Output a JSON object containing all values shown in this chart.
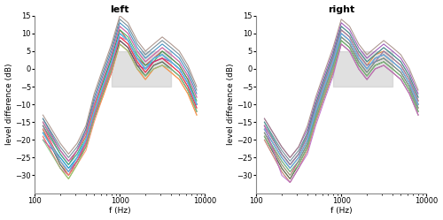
{
  "title_left": "left",
  "title_right": "right",
  "xlabel": "f (Hz)",
  "ylabel": "level difference (dB)",
  "ylim": [
    -35,
    15
  ],
  "xlim": [
    100,
    10000
  ],
  "yticks": [
    -30,
    -25,
    -20,
    -15,
    -10,
    -5,
    0,
    5,
    10,
    15
  ],
  "gray_box": {
    "xmin": 800,
    "xmax": 4000,
    "ymin": -5,
    "ymax": 5
  },
  "gray_color": "#c8c8c8",
  "gray_alpha": 0.55,
  "freqs": [
    125,
    200,
    250,
    315,
    400,
    500,
    630,
    800,
    1000,
    1250,
    1600,
    2000,
    2500,
    3150,
    4000,
    5000,
    6300,
    8000
  ],
  "line_colors": [
    "#c0392b",
    "#e67e22",
    "#d4ac0d",
    "#27ae60",
    "#1abc9c",
    "#2980b9",
    "#8e44ad",
    "#e91e63",
    "#00bcd4",
    "#ff7043",
    "#795548",
    "#607d8b",
    "#f06292",
    "#4db6ac",
    "#7986cb",
    "#ff8a65",
    "#a1887f",
    "#4fc3f7",
    "#81c784",
    "#ba68c8"
  ],
  "left_data": [
    [
      -16,
      -24,
      -27,
      -23,
      -18,
      -10,
      -4,
      3,
      11,
      8,
      3,
      1,
      3,
      5,
      3,
      1,
      -3,
      -10
    ],
    [
      -18,
      -26,
      -29,
      -25,
      -20,
      -12,
      -6,
      1,
      9,
      7,
      2,
      -1,
      2,
      3,
      1,
      -1,
      -5,
      -11
    ],
    [
      -19,
      -28,
      -31,
      -27,
      -22,
      -14,
      -8,
      -1,
      7,
      5,
      0,
      -3,
      0,
      1,
      -1,
      -3,
      -7,
      -13
    ],
    [
      -15,
      -24,
      -27,
      -24,
      -19,
      -11,
      -4,
      3,
      11,
      9,
      4,
      1,
      2,
      5,
      3,
      1,
      -3,
      -9
    ],
    [
      -17,
      -27,
      -30,
      -26,
      -21,
      -13,
      -7,
      0,
      8,
      6,
      1,
      -2,
      1,
      2,
      0,
      -2,
      -6,
      -12
    ],
    [
      -14,
      -23,
      -26,
      -23,
      -17,
      -9,
      -2,
      5,
      13,
      11,
      6,
      3,
      5,
      7,
      5,
      3,
      -1,
      -7
    ],
    [
      -20,
      -25,
      -28,
      -25,
      -21,
      -14,
      -7,
      -1,
      8,
      6,
      1,
      0,
      2,
      3,
      2,
      0,
      -4,
      -10
    ],
    [
      -16,
      -26,
      -29,
      -26,
      -21,
      -13,
      -6,
      1,
      9,
      7,
      2,
      -1,
      2,
      3,
      1,
      -1,
      -5,
      -11
    ],
    [
      -18,
      -25,
      -28,
      -25,
      -20,
      -12,
      -5,
      2,
      10,
      8,
      3,
      0,
      3,
      4,
      2,
      0,
      -4,
      -10
    ],
    [
      -15,
      -23,
      -26,
      -23,
      -19,
      -11,
      -3,
      4,
      12,
      10,
      5,
      2,
      4,
      6,
      4,
      2,
      -2,
      -8
    ],
    [
      -17,
      -27,
      -30,
      -26,
      -22,
      -14,
      -7,
      0,
      8,
      6,
      1,
      -2,
      1,
      2,
      0,
      -2,
      -6,
      -12
    ],
    [
      -14,
      -22,
      -25,
      -22,
      -17,
      -8,
      -1,
      6,
      14,
      12,
      7,
      4,
      6,
      8,
      6,
      4,
      0,
      -6
    ],
    [
      -19,
      -28,
      -30,
      -26,
      -21,
      -13,
      -6,
      1,
      9,
      8,
      3,
      0,
      3,
      4,
      2,
      0,
      -4,
      -10
    ],
    [
      -16,
      -24,
      -27,
      -24,
      -20,
      -12,
      -5,
      2,
      10,
      8,
      3,
      0,
      3,
      4,
      2,
      0,
      -4,
      -10
    ],
    [
      -18,
      -26,
      -29,
      -25,
      -20,
      -12,
      -5,
      2,
      10,
      8,
      3,
      0,
      3,
      4,
      2,
      0,
      -4,
      -10
    ],
    [
      -17,
      -26,
      -30,
      -27,
      -23,
      -15,
      -8,
      -1,
      7,
      5,
      0,
      -3,
      0,
      1,
      -1,
      -3,
      -7,
      -13
    ],
    [
      -13,
      -21,
      -24,
      -21,
      -16,
      -7,
      0,
      7,
      15,
      13,
      8,
      5,
      7,
      9,
      7,
      5,
      1,
      -5
    ],
    [
      -18,
      -26,
      -29,
      -25,
      -20,
      -12,
      -5,
      2,
      10,
      8,
      3,
      0,
      3,
      4,
      2,
      0,
      -4,
      -10
    ],
    [
      -20,
      -28,
      -31,
      -27,
      -22,
      -14,
      -7,
      0,
      7,
      5,
      0,
      -2,
      0,
      1,
      0,
      -2,
      -6,
      -12
    ],
    [
      -15,
      -23,
      -26,
      -23,
      -18,
      -10,
      -3,
      4,
      12,
      10,
      5,
      2,
      4,
      6,
      4,
      2,
      -2,
      -8
    ]
  ],
  "right_data": [
    [
      -16,
      -24,
      -27,
      -24,
      -19,
      -11,
      -4,
      3,
      10,
      8,
      3,
      0,
      3,
      4,
      2,
      0,
      -4,
      -10
    ],
    [
      -17,
      -25,
      -28,
      -25,
      -20,
      -12,
      -5,
      2,
      11,
      9,
      4,
      1,
      4,
      5,
      3,
      1,
      -3,
      -9
    ],
    [
      -18,
      -26,
      -29,
      -26,
      -21,
      -13,
      -6,
      1,
      9,
      7,
      2,
      -1,
      2,
      3,
      1,
      -1,
      -5,
      -11
    ],
    [
      -19,
      -28,
      -31,
      -27,
      -22,
      -14,
      -8,
      -1,
      8,
      6,
      1,
      -2,
      1,
      2,
      0,
      -2,
      -6,
      -12
    ],
    [
      -15,
      -24,
      -27,
      -24,
      -18,
      -10,
      -3,
      4,
      12,
      10,
      5,
      2,
      4,
      6,
      4,
      2,
      -2,
      -8
    ],
    [
      -20,
      -29,
      -32,
      -28,
      -23,
      -15,
      -8,
      -1,
      7,
      5,
      0,
      -3,
      0,
      1,
      -1,
      -3,
      -7,
      -13
    ],
    [
      -14,
      -22,
      -25,
      -22,
      -17,
      -9,
      -2,
      5,
      13,
      11,
      6,
      3,
      5,
      7,
      5,
      3,
      -1,
      -7
    ],
    [
      -18,
      -27,
      -30,
      -26,
      -21,
      -13,
      -6,
      1,
      9,
      7,
      2,
      -1,
      2,
      3,
      1,
      -1,
      -5,
      -11
    ],
    [
      -17,
      -25,
      -28,
      -25,
      -20,
      -12,
      -5,
      2,
      10,
      8,
      3,
      0,
      3,
      4,
      2,
      0,
      -4,
      -10
    ],
    [
      -16,
      -24,
      -27,
      -24,
      -19,
      -11,
      -4,
      3,
      11,
      9,
      4,
      1,
      2,
      5,
      3,
      1,
      -3,
      -9
    ],
    [
      -19,
      -28,
      -31,
      -27,
      -22,
      -14,
      -7,
      0,
      8,
      6,
      1,
      -2,
      1,
      2,
      0,
      -2,
      -6,
      -12
    ],
    [
      -15,
      -23,
      -26,
      -23,
      -18,
      -10,
      -3,
      4,
      12,
      10,
      5,
      2,
      4,
      6,
      4,
      2,
      -2,
      -8
    ],
    [
      -17,
      -25,
      -28,
      -25,
      -20,
      -12,
      -5,
      2,
      10,
      8,
      3,
      0,
      3,
      4,
      2,
      0,
      -4,
      -10
    ],
    [
      -18,
      -26,
      -29,
      -26,
      -21,
      -13,
      -6,
      1,
      9,
      7,
      2,
      -1,
      2,
      3,
      1,
      -1,
      -5,
      -11
    ],
    [
      -16,
      -24,
      -27,
      -24,
      -19,
      -11,
      -4,
      3,
      11,
      9,
      4,
      1,
      2,
      5,
      3,
      1,
      -3,
      -9
    ],
    [
      -20,
      -29,
      -32,
      -28,
      -23,
      -15,
      -8,
      -1,
      7,
      5,
      0,
      -3,
      0,
      1,
      -1,
      -3,
      -7,
      -13
    ],
    [
      -14,
      -22,
      -25,
      -22,
      -16,
      -8,
      -1,
      6,
      14,
      12,
      7,
      4,
      6,
      8,
      6,
      4,
      0,
      -6
    ],
    [
      -17,
      -25,
      -28,
      -25,
      -20,
      -12,
      -5,
      2,
      10,
      8,
      3,
      0,
      3,
      4,
      2,
      0,
      -4,
      -10
    ],
    [
      -19,
      -27,
      -30,
      -27,
      -22,
      -14,
      -7,
      0,
      8,
      6,
      1,
      -2,
      1,
      2,
      0,
      -2,
      -6,
      -12
    ],
    [
      -16,
      -30,
      -32,
      -28,
      -24,
      -16,
      -9,
      -2,
      7,
      5,
      0,
      -3,
      0,
      1,
      -1,
      -3,
      -7,
      -13
    ]
  ],
  "background_color": "#ffffff",
  "spine_color": "#888888",
  "tick_color": "#444444",
  "linewidth": 0.75
}
